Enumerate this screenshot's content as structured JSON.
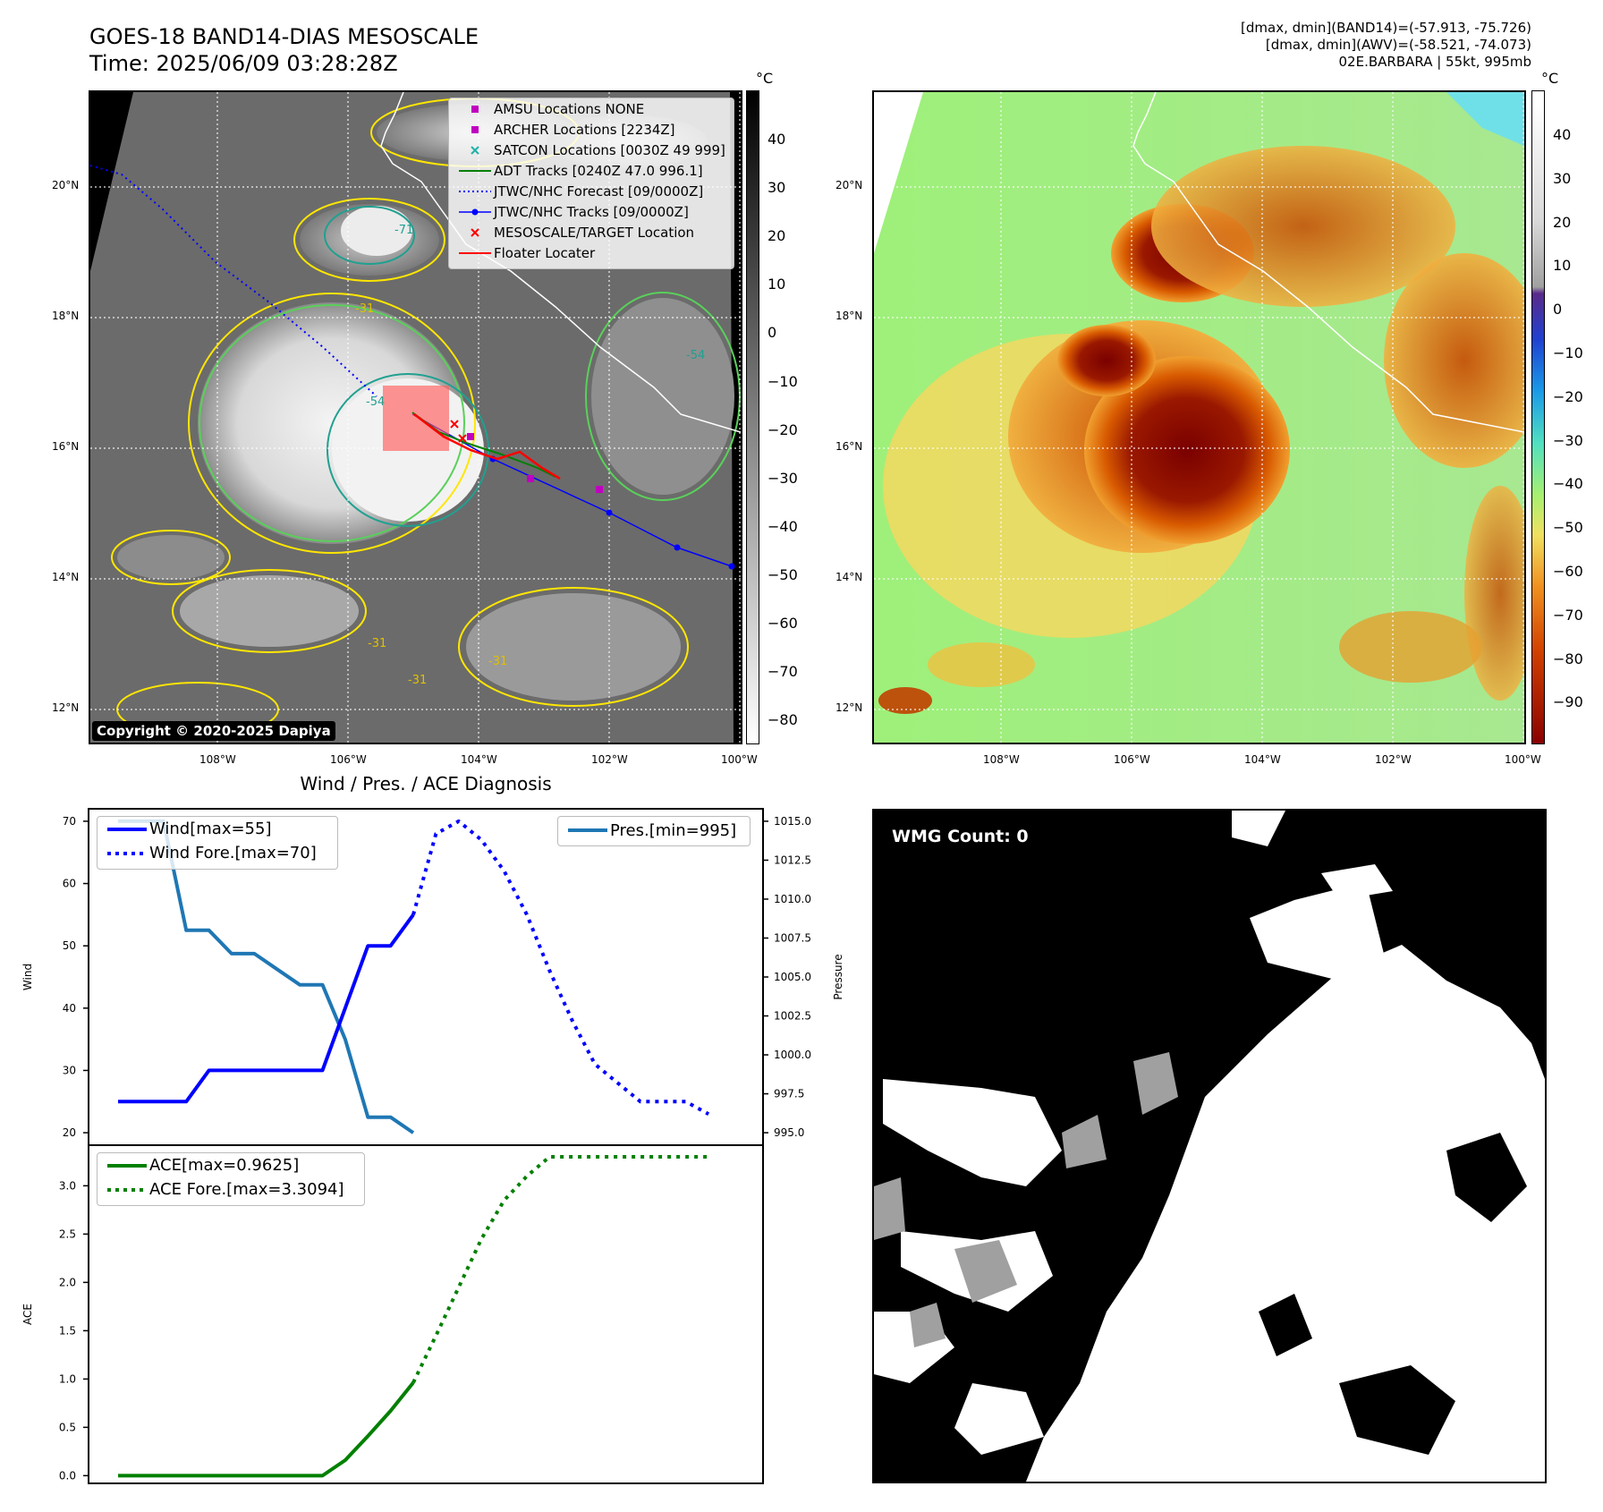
{
  "header": {
    "title_line1": "GOES-18 BAND14-DIAS MESOSCALE",
    "title_line2": "Time: 2025/06/09 03:28:28Z",
    "info_line1": "[dmax, dmin](BAND14)=(-57.913, -75.726)",
    "info_line2": "[dmax, dmin](AWV)=(-58.521, -74.073)",
    "info_line3": "02E.BARBARA | 55kt, 995mb"
  },
  "map_axes": {
    "lat_labels": [
      "20°N",
      "18°N",
      "16°N",
      "14°N",
      "12°N"
    ],
    "lon_labels": [
      "108°W",
      "106°W",
      "104°W",
      "102°W",
      "100°W"
    ]
  },
  "ir_panel": {
    "colorbar_unit": "°C",
    "colorbar_ticks": [
      "40",
      "30",
      "20",
      "10",
      "0",
      "−10",
      "−20",
      "−30",
      "−40",
      "−50",
      "−60",
      "−70",
      "−80"
    ],
    "copyright": "Copyright © 2020-2025 Dapiya",
    "contour_labels": [
      "-31",
      "-54",
      "-71",
      "-31",
      "-31",
      "-31",
      "-54"
    ],
    "legend": [
      {
        "label": "AMSU Locations NONE",
        "symbol": "square",
        "color": "#c000c0"
      },
      {
        "label": "ARCHER Locations [2234Z]",
        "symbol": "square",
        "color": "#c000c0"
      },
      {
        "label": "SATCON Locations [0030Z 49 999]",
        "symbol": "x",
        "color": "#20b2aa"
      },
      {
        "label": "ADT Tracks [0240Z 47.0 996.1]",
        "symbol": "line",
        "color": "#008000"
      },
      {
        "label": "JTWC/NHC Forecast [09/0000Z]",
        "symbol": "dotted",
        "color": "#0000ff"
      },
      {
        "label": "JTWC/NHC Tracks [09/0000Z]",
        "symbol": "line-dot",
        "color": "#0000ff"
      },
      {
        "label": "MESOSCALE/TARGET Location",
        "symbol": "x",
        "color": "#ff0000"
      },
      {
        "label": "Floater Locater",
        "symbol": "line",
        "color": "#ff0000"
      }
    ]
  },
  "awv_panel": {
    "colorbar_unit": "°C",
    "colorbar_ticks": [
      "40",
      "30",
      "20",
      "10",
      "0",
      "−10",
      "−20",
      "−30",
      "−40",
      "−50",
      "−60",
      "−70",
      "−80",
      "−90"
    ]
  },
  "wmg_panel": {
    "badge": "WMG Count: 0"
  },
  "colors": {
    "wind": "#0000ff",
    "pressure": "#1f77b4",
    "ace": "#008000",
    "track": "#0000ff",
    "floater": "#ff0000"
  },
  "chart_data": [
    {
      "type": "line",
      "title": "Wind / Pres. / ACE Diagnosis",
      "ylabel": "Wind",
      "ylabel_right": "Pressure",
      "ylim": [
        18,
        72
      ],
      "ylim_right": [
        994.2,
        1015.8
      ],
      "yticks": [
        20,
        30,
        40,
        50,
        60,
        70
      ],
      "yticks_right": [
        "995.0",
        "997.5",
        "1000.0",
        "1002.5",
        "1005.0",
        "1007.5",
        "1010.0",
        "1012.5",
        "1015.0"
      ],
      "series": [
        {
          "name": "Wind[max=55]",
          "style": "solid",
          "axis": "left",
          "x": [
            0,
            1,
            2,
            3,
            4,
            5,
            6,
            7,
            8,
            9,
            10,
            11,
            12,
            13
          ],
          "values": [
            25,
            25,
            25,
            25,
            30,
            30,
            30,
            30,
            30,
            30,
            40,
            50,
            50,
            55
          ]
        },
        {
          "name": "Wind Fore.[max=70]",
          "style": "dotted",
          "axis": "left",
          "x": [
            13,
            14,
            15,
            16,
            17,
            18,
            19,
            20,
            21,
            22,
            23,
            24,
            25,
            26
          ],
          "values": [
            55,
            68,
            70,
            67,
            62,
            55,
            46,
            38,
            31,
            28,
            25,
            25,
            25,
            23
          ]
        },
        {
          "name": "Pres.[min=995]",
          "style": "solid",
          "axis": "right",
          "x": [
            0,
            1,
            2,
            3,
            4,
            5,
            6,
            7,
            8,
            9,
            10,
            11,
            12,
            13
          ],
          "values": [
            1015,
            1015,
            1015,
            1008,
            1008,
            1006.5,
            1006.5,
            1005.5,
            1004.5,
            1004.5,
            1001,
            996,
            996,
            995
          ]
        }
      ]
    },
    {
      "type": "line",
      "ylabel": "ACE",
      "ylim": [
        -0.08,
        3.42
      ],
      "yticks": [
        "0.0",
        "0.5",
        "1.0",
        "1.5",
        "2.0",
        "2.5",
        "3.0"
      ],
      "series": [
        {
          "name": "ACE[max=0.9625]",
          "style": "solid",
          "x": [
            0,
            1,
            2,
            3,
            4,
            5,
            6,
            7,
            8,
            9,
            10,
            11,
            12,
            13
          ],
          "values": [
            0,
            0,
            0,
            0,
            0,
            0,
            0,
            0,
            0,
            0,
            0.16,
            0.41,
            0.67,
            0.9625
          ]
        },
        {
          "name": "ACE Fore.[max=3.3094]",
          "style": "dotted",
          "x": [
            13,
            14,
            15,
            16,
            17,
            18,
            19,
            20,
            21,
            22,
            23,
            24,
            25,
            26
          ],
          "values": [
            0.9625,
            1.45,
            1.95,
            2.45,
            2.85,
            3.1,
            3.3,
            3.3,
            3.3,
            3.3,
            3.3,
            3.3,
            3.3,
            3.3
          ]
        }
      ]
    }
  ]
}
